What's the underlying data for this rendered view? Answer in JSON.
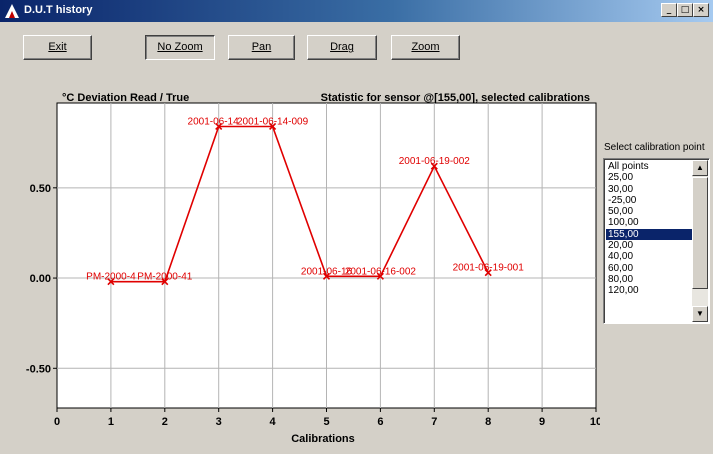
{
  "window": {
    "title": "D.U.T history",
    "buttons": [
      "_",
      "□",
      "×"
    ]
  },
  "toolbar": {
    "buttons": [
      {
        "label": "Exit",
        "name": "exit-button",
        "pressed": false
      },
      {
        "label": "No Zoom",
        "name": "no-zoom-button",
        "pressed": true
      },
      {
        "label": "Pan",
        "name": "pan-button",
        "pressed": false
      },
      {
        "label": "Drag",
        "name": "drag-button",
        "pressed": false
      },
      {
        "label": "Zoom",
        "name": "zoom-button",
        "pressed": false
      }
    ]
  },
  "calibration_panel": {
    "label": "Select calibration point",
    "items": [
      "All points",
      "25,00",
      "30,00",
      "-25,00",
      "50,00",
      "100,00",
      "155,00",
      "20,00",
      "40,00",
      "60,00",
      "80,00",
      "120,00"
    ],
    "selected_index": 6
  },
  "chart_data": {
    "type": "line",
    "title": "°C Deviation Read / True",
    "subtitle": "Statistic for sensor @[155,00], selected calibrations",
    "xlabel": "Calibrations",
    "ylabel": "",
    "xlim": [
      0,
      10
    ],
    "ylim": [
      -0.72,
      0.97
    ],
    "xticks": [
      "0",
      "1",
      "2",
      "3",
      "4",
      "5",
      "6",
      "7",
      "8",
      "9",
      "10"
    ],
    "yticks": [
      {
        "value": 0.5,
        "label": "0.50"
      },
      {
        "value": 0.0,
        "label": "0.00"
      },
      {
        "value": -0.5,
        "label": "-0.50"
      }
    ],
    "grid": true,
    "color": "#e00000",
    "series": [
      {
        "points": [
          {
            "x": 1,
            "y": -0.02
          },
          {
            "x": 2,
            "y": -0.02
          },
          {
            "x": 3,
            "y": 0.84
          },
          {
            "x": 4,
            "y": 0.84
          },
          {
            "x": 5,
            "y": 0.01
          },
          {
            "x": 6,
            "y": 0.01
          },
          {
            "x": 7,
            "y": 0.62
          },
          {
            "x": 8,
            "y": 0.03
          }
        ]
      }
    ],
    "annotations": [
      {
        "text": "PM-2000-4",
        "x": 1,
        "y": -0.02,
        "anchor": "middle"
      },
      {
        "text": "PM-2000-41",
        "x": 2,
        "y": -0.02,
        "anchor": "middle"
      },
      {
        "text": "2001-06-14",
        "x": 3,
        "y": 0.84,
        "anchor": "end"
      },
      {
        "text": "2001-06-14-009",
        "x": 4,
        "y": 0.84,
        "anchor": "middle"
      },
      {
        "text": "2001-06-16",
        "x": 5,
        "y": 0.01,
        "anchor": "middle"
      },
      {
        "text": "2001-06-16-002",
        "x": 6,
        "y": 0.01,
        "anchor": "middle"
      },
      {
        "text": "2001-06-19-002",
        "x": 7,
        "y": 0.62,
        "anchor": "middle"
      },
      {
        "text": "2001-06-19-001",
        "x": 8,
        "y": 0.03,
        "anchor": "middle"
      }
    ]
  }
}
